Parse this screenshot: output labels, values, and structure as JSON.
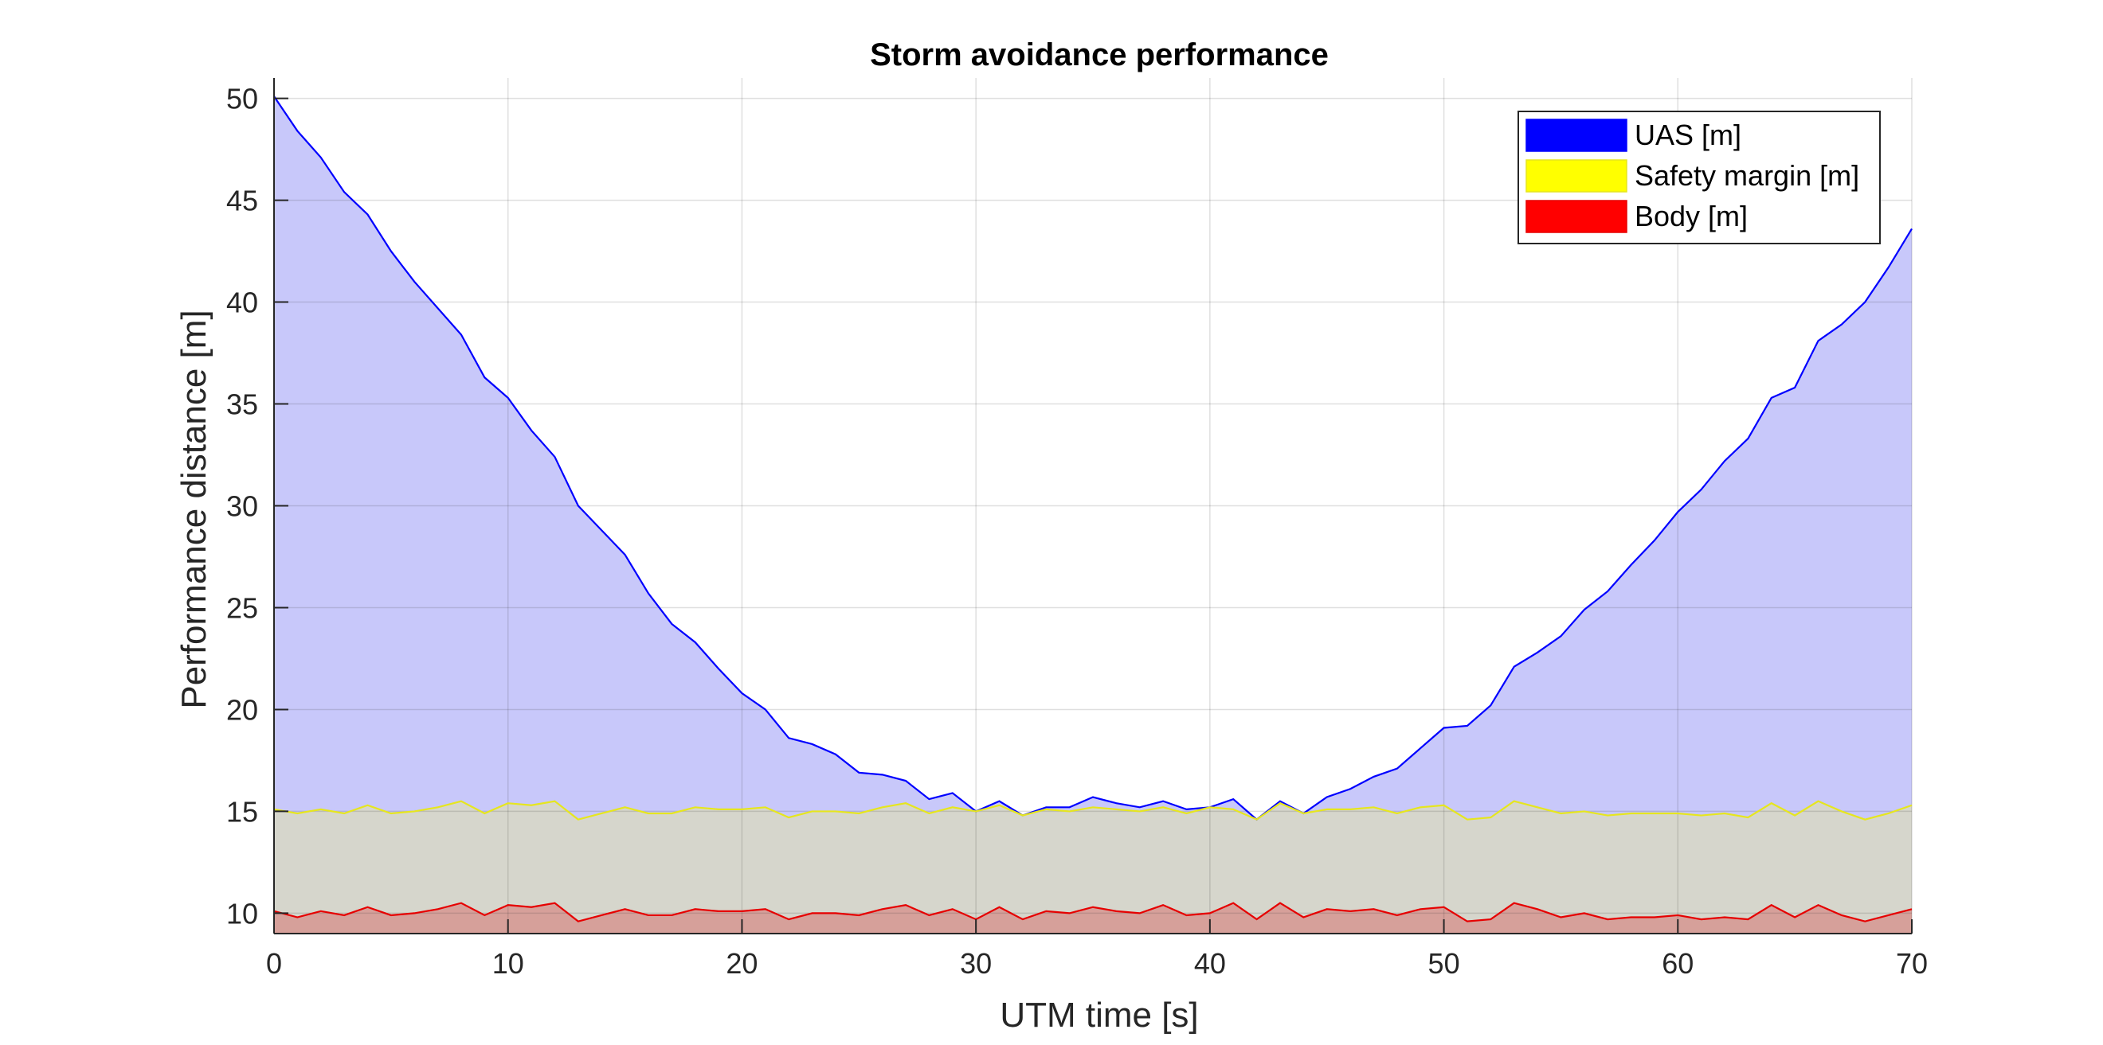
{
  "chart_data": {
    "type": "area",
    "title": "Storm avoidance performance",
    "xlabel": "UTM time [s]",
    "ylabel": "Performance distance [m]",
    "xlim": [
      0,
      70
    ],
    "ylim": [
      9,
      51
    ],
    "xticks": [
      0,
      10,
      20,
      30,
      40,
      50,
      60,
      70
    ],
    "yticks": [
      10,
      15,
      20,
      25,
      30,
      35,
      40,
      45,
      50
    ],
    "grid": true,
    "legend_position": "top-right",
    "x": [
      0,
      1,
      2,
      3,
      4,
      5,
      6,
      7,
      8,
      9,
      10,
      11,
      12,
      13,
      14,
      15,
      16,
      17,
      18,
      19,
      20,
      21,
      22,
      23,
      24,
      25,
      26,
      27,
      28,
      29,
      30,
      31,
      32,
      33,
      34,
      35,
      36,
      37,
      38,
      39,
      40,
      41,
      42,
      43,
      44,
      45,
      46,
      47,
      48,
      49,
      50,
      51,
      52,
      53,
      54,
      55,
      56,
      57,
      58,
      59,
      60,
      61,
      62,
      63,
      64,
      65,
      66,
      67,
      68,
      69,
      70
    ],
    "series": [
      {
        "name": "UAS [m]",
        "line_color": "#0000ff",
        "fill_color": "#c8c8fa",
        "values": [
          50.1,
          48.4,
          47.1,
          45.4,
          44.3,
          42.5,
          41.0,
          39.7,
          38.4,
          36.3,
          35.3,
          33.7,
          32.4,
          30.0,
          28.8,
          27.6,
          25.7,
          24.2,
          23.3,
          22.0,
          20.8,
          20.0,
          18.6,
          18.3,
          17.8,
          16.9,
          16.8,
          16.5,
          15.6,
          15.9,
          15.0,
          15.5,
          14.8,
          15.2,
          15.2,
          15.7,
          15.4,
          15.2,
          15.5,
          15.1,
          15.2,
          15.6,
          14.6,
          15.5,
          14.9,
          15.7,
          16.1,
          16.7,
          17.1,
          18.1,
          19.1,
          19.2,
          20.2,
          22.1,
          22.8,
          23.6,
          24.9,
          25.8,
          27.1,
          28.3,
          29.7,
          30.8,
          32.2,
          33.3,
          35.3,
          35.8,
          38.1,
          38.9,
          40.0,
          41.7,
          43.6
        ]
      },
      {
        "name": "Safety margin [m]",
        "line_color": "#e6e61e",
        "fill_color": "#d6d6cc",
        "values": [
          15.1,
          14.9,
          15.1,
          14.9,
          15.3,
          14.9,
          15.0,
          15.2,
          15.5,
          14.9,
          15.4,
          15.3,
          15.5,
          14.6,
          14.9,
          15.2,
          14.9,
          14.9,
          15.2,
          15.1,
          15.1,
          15.2,
          14.7,
          15.0,
          15.0,
          14.9,
          15.2,
          15.4,
          14.9,
          15.2,
          15.0,
          15.3,
          14.8,
          15.1,
          15.0,
          15.2,
          15.1,
          15.0,
          15.2,
          14.9,
          15.2,
          15.1,
          14.6,
          15.4,
          14.9,
          15.1,
          15.1,
          15.2,
          14.9,
          15.2,
          15.3,
          14.6,
          14.7,
          15.5,
          15.2,
          14.9,
          15.0,
          14.8,
          14.9,
          14.9,
          14.9,
          14.8,
          14.9,
          14.7,
          15.4,
          14.8,
          15.5,
          15.0,
          14.6,
          14.9,
          15.3
        ]
      },
      {
        "name": "Body [m]",
        "line_color": "#e60000",
        "fill_color": "#d6a09a",
        "values": [
          10.1,
          9.8,
          10.1,
          9.9,
          10.3,
          9.9,
          10.0,
          10.2,
          10.5,
          9.9,
          10.4,
          10.3,
          10.5,
          9.6,
          9.9,
          10.2,
          9.9,
          9.9,
          10.2,
          10.1,
          10.1,
          10.2,
          9.7,
          10.0,
          10.0,
          9.9,
          10.2,
          10.4,
          9.9,
          10.2,
          9.7,
          10.3,
          9.7,
          10.1,
          10.0,
          10.3,
          10.1,
          10.0,
          10.4,
          9.9,
          10.0,
          10.5,
          9.7,
          10.5,
          9.8,
          10.2,
          10.1,
          10.2,
          9.9,
          10.2,
          10.3,
          9.6,
          9.7,
          10.5,
          10.2,
          9.8,
          10.0,
          9.7,
          9.8,
          9.8,
          9.9,
          9.7,
          9.8,
          9.7,
          10.4,
          9.8,
          10.4,
          9.9,
          9.6,
          9.9,
          10.2
        ]
      }
    ]
  }
}
